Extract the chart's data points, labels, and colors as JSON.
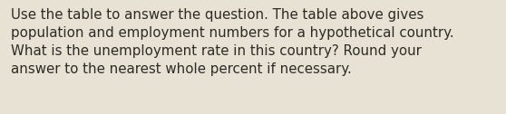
{
  "text": "Use the table to answer the question. The table above gives\npopulation and employment numbers for a hypothetical country.\nWhat is the unemployment rate in this country? Round your\nanswer to the nearest whole percent if necessary.",
  "background_color": "#e8e2d4",
  "text_color": "#2d2b26",
  "font_size": 10.8,
  "fig_width": 5.58,
  "fig_height": 1.26,
  "dpi": 100
}
